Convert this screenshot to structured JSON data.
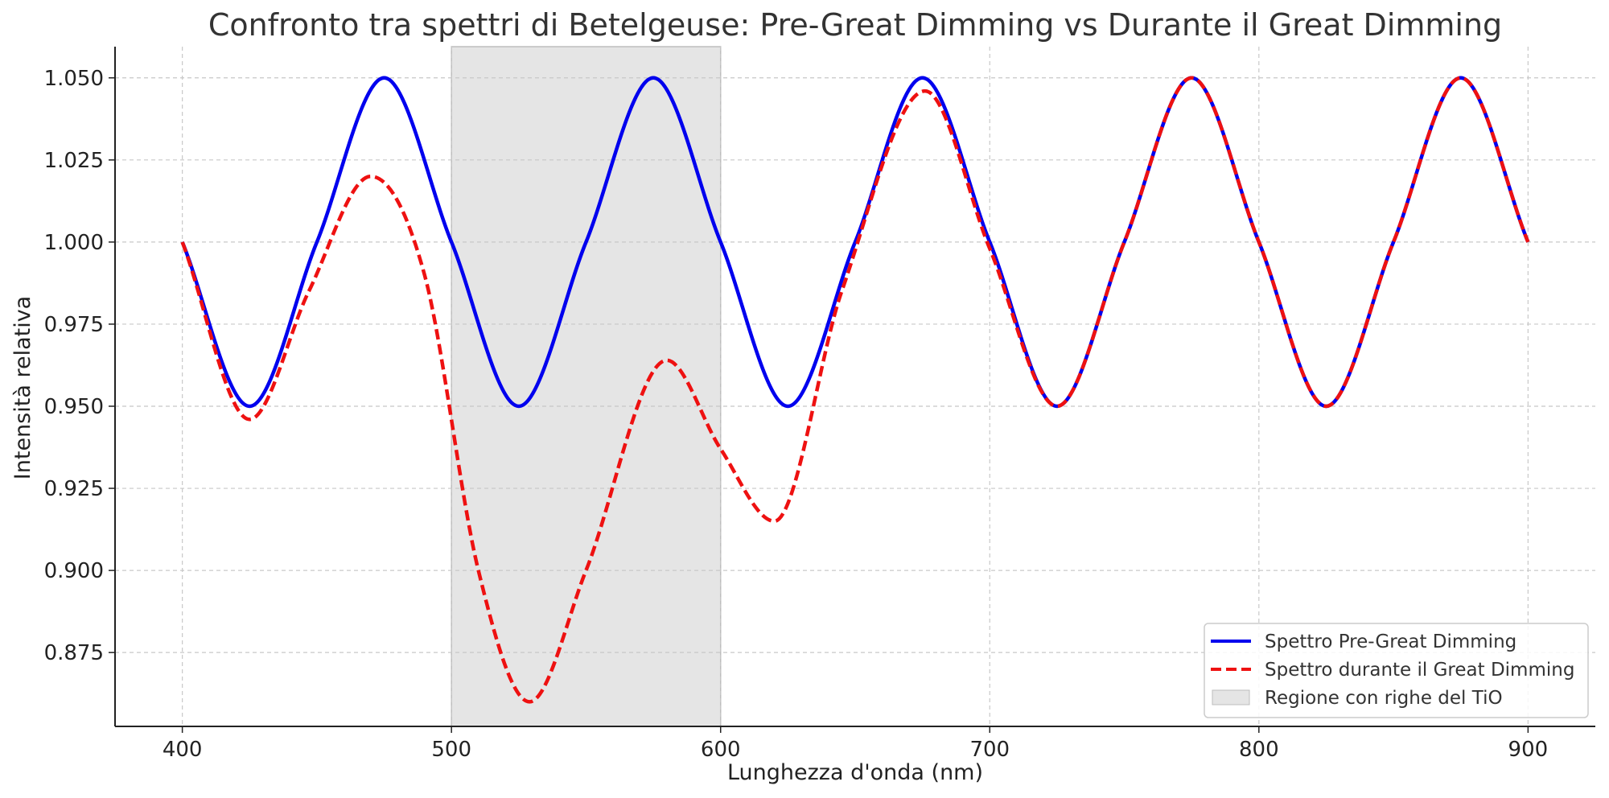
{
  "chart_data": {
    "type": "line",
    "title": "Confronto tra spettri di Betelgeuse: Pre-Great Dimming vs Durante il Great Dimming",
    "xlabel": "Lunghezza d'onda (nm)",
    "ylabel": "Intensità relativa",
    "xlim": [
      375,
      925
    ],
    "ylim": [
      0.8525,
      1.0595
    ],
    "xticks": [
      400,
      500,
      600,
      700,
      800,
      900
    ],
    "xtick_labels": [
      "400",
      "500",
      "600",
      "700",
      "800",
      "900"
    ],
    "yticks": [
      0.875,
      0.9,
      0.925,
      0.95,
      0.975,
      1.0,
      1.025,
      1.05
    ],
    "ytick_labels": [
      "0.875",
      "0.900",
      "0.925",
      "0.950",
      "0.975",
      "1.000",
      "1.025",
      "1.050"
    ],
    "grid": true,
    "legend_position": "lower-right",
    "shaded_region": {
      "name": "Regione con righe del TiO",
      "x_range": [
        500,
        600
      ],
      "color": "#e5e5e5"
    },
    "series": [
      {
        "name": "Spettro Pre-Great Dimming",
        "color": "#0000ee",
        "style": "solid",
        "x": [
          400,
          425,
          450,
          475,
          500,
          525,
          550,
          575,
          600,
          625,
          650,
          675,
          700,
          725,
          750,
          775,
          800,
          825,
          850,
          875,
          900
        ],
        "y": [
          1.0,
          0.95,
          1.0,
          1.05,
          1.0,
          0.95,
          1.0,
          1.05,
          1.0,
          0.95,
          1.0,
          1.05,
          1.0,
          0.95,
          1.0,
          1.05,
          1.0,
          0.95,
          1.0,
          1.05,
          1.0
        ]
      },
      {
        "name": "Spettro durante il Great Dimming",
        "color": "#ee1111",
        "style": "dashed",
        "x": [
          400,
          425,
          447,
          470,
          490,
          510,
          529,
          550,
          580,
          600,
          620,
          645,
          676,
          700,
          725,
          750,
          775,
          800,
          825,
          850,
          875,
          900
        ],
        "y": [
          1.0,
          0.946,
          0.985,
          1.02,
          0.99,
          0.9,
          0.86,
          0.9,
          0.964,
          0.937,
          0.915,
          0.985,
          1.046,
          0.998,
          0.95,
          1.0,
          1.05,
          1.0,
          0.95,
          1.0,
          1.05,
          1.0
        ]
      }
    ]
  }
}
